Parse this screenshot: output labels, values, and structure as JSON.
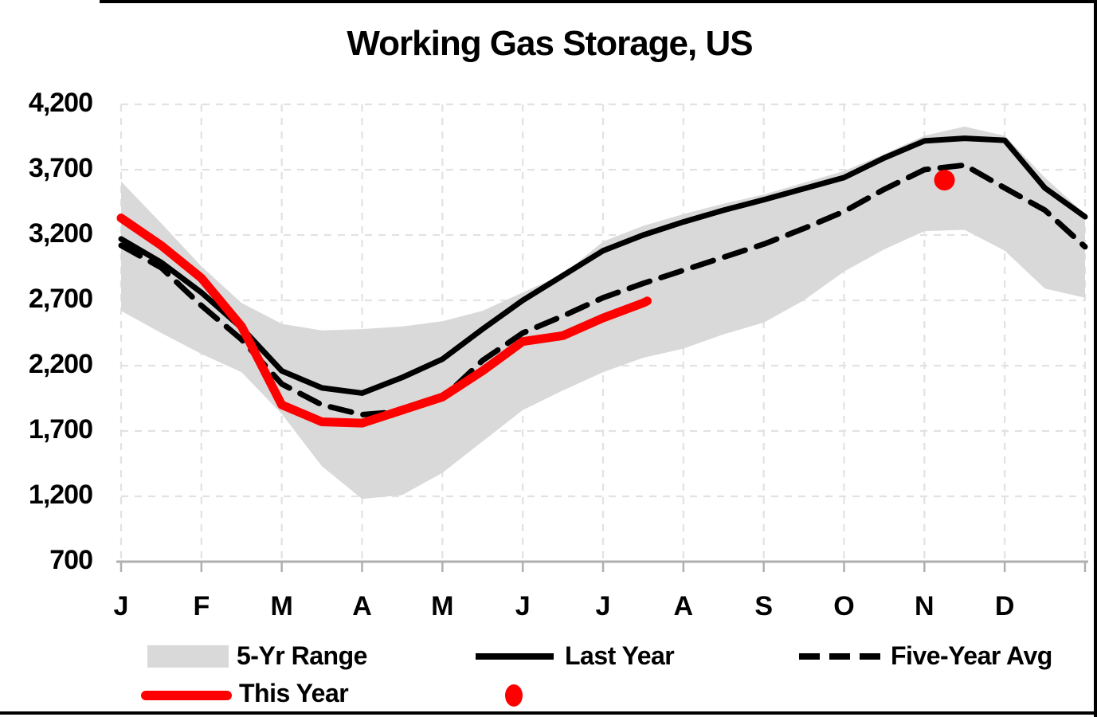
{
  "title": "Working Gas Storage, US",
  "colors": {
    "this_year_red": "#FE0000",
    "band_gray": "#D9D9D9",
    "line_black": "#000000",
    "gridline_gray": "#E2E2E2",
    "axis_gray": "#AFAFAF"
  },
  "legend": {
    "range_label": "5-Yr Range",
    "last_year_label": "Last Year",
    "five_year_avg_label": "Five-Year Avg",
    "this_year_label": "This Year"
  },
  "chart_data": {
    "type": "line",
    "title": "Working Gas Storage, US",
    "xlabel": "",
    "ylabel": "",
    "grid": "dashed-light-gray",
    "legend_position": "bottom",
    "x_axis": {
      "months": [
        "J",
        "F",
        "M",
        "A",
        "M",
        "J",
        "J",
        "A",
        "S",
        "O",
        "N",
        "D"
      ]
    },
    "y_axis": {
      "min": 700,
      "max": 4200,
      "step": 500,
      "tick_labels": [
        "4,200",
        "3,700",
        "3,200",
        "2,700",
        "2,200",
        "1,700",
        "1,200",
        "700"
      ]
    },
    "x_months_fraction": [
      0,
      0.5,
      1,
      1.5,
      2,
      2.5,
      3,
      3.5,
      4,
      4.5,
      5,
      5.5,
      6,
      6.5,
      7,
      7.5,
      8,
      8.5,
      9,
      9.5,
      10,
      10.5,
      11,
      11.5,
      12
    ],
    "band": {
      "name": "5-Yr Range",
      "color": "#D9D9D9",
      "upper": [
        3610,
        3290,
        2960,
        2680,
        2520,
        2470,
        2480,
        2500,
        2540,
        2620,
        2760,
        2900,
        3150,
        3270,
        3360,
        3440,
        3510,
        3600,
        3690,
        3820,
        3960,
        4030,
        3960,
        3640,
        3360
      ],
      "lower": [
        2620,
        2450,
        2290,
        2150,
        1830,
        1430,
        1180,
        1210,
        1380,
        1620,
        1860,
        2010,
        2150,
        2260,
        2330,
        2440,
        2530,
        2700,
        2920,
        3090,
        3230,
        3240,
        3080,
        2790,
        2720
      ]
    },
    "series": [
      {
        "name": "Last Year",
        "style": "solid",
        "color": "#000000",
        "values": [
          3170,
          2990,
          2760,
          2490,
          2160,
          2030,
          1990,
          2110,
          2250,
          2480,
          2700,
          2890,
          3080,
          3200,
          3300,
          3390,
          3470,
          3555,
          3640,
          3790,
          3920,
          3940,
          3925,
          3560,
          3340
        ]
      },
      {
        "name": "Five-Year Avg",
        "style": "dashed",
        "color": "#000000",
        "values": [
          3120,
          2950,
          2660,
          2400,
          2060,
          1900,
          1825,
          1850,
          1950,
          2240,
          2450,
          2580,
          2720,
          2830,
          2930,
          3030,
          3130,
          3250,
          3380,
          3550,
          3700,
          3735,
          3560,
          3390,
          3110
        ]
      },
      {
        "name": "This Year",
        "style": "solid-thick",
        "color": "#FE0000",
        "x_months_fraction": [
          0,
          0.5,
          1,
          1.5,
          2,
          2.5,
          3,
          3.5,
          4,
          4.5,
          5,
          5.5,
          6,
          6.5,
          6.55
        ],
        "values": [
          3330,
          3120,
          2870,
          2500,
          1900,
          1770,
          1760,
          1860,
          1960,
          2160,
          2385,
          2430,
          2565,
          2680,
          2695
        ]
      }
    ],
    "point_marker": {
      "name": "november-red-dot",
      "x_months_fraction": 10.25,
      "value": 3620,
      "color": "#FE0000"
    }
  }
}
